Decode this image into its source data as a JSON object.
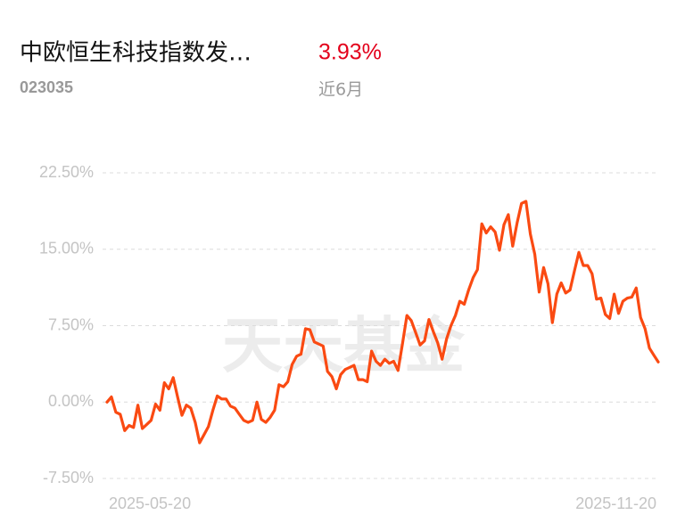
{
  "header": {
    "title": "中欧恒生科技指数发…",
    "change": "3.93%",
    "code": "023035",
    "period": "近6月"
  },
  "watermark": "天天基金",
  "chart_data": {
    "type": "line",
    "color": "#fa4a12",
    "grid": true,
    "categories": [
      "2025-05-20",
      null,
      null,
      null,
      null,
      null,
      null,
      null,
      null,
      null,
      null,
      null,
      null,
      null,
      null,
      null,
      null,
      null,
      null,
      null,
      null,
      null,
      null,
      null,
      null,
      null,
      null,
      null,
      null,
      null,
      null,
      null,
      null,
      null,
      null,
      null,
      null,
      null,
      null,
      null,
      null,
      null,
      null,
      null,
      null,
      null,
      null,
      null,
      null,
      null,
      null,
      null,
      null,
      null,
      null,
      null,
      null,
      null,
      null,
      null,
      null,
      null,
      null,
      null,
      null,
      null,
      null,
      null,
      null,
      null,
      null,
      null,
      null,
      null,
      null,
      null,
      null,
      null,
      null,
      null,
      null,
      null,
      null,
      null,
      null,
      null,
      null,
      null,
      null,
      null,
      null,
      null,
      null,
      null,
      null,
      null,
      null,
      null,
      null,
      null,
      null,
      null,
      null,
      null,
      null,
      null,
      null,
      null,
      null,
      null,
      null,
      null,
      null,
      null,
      null,
      null,
      null,
      null,
      null,
      null,
      null,
      null,
      null,
      null,
      null,
      "2025-11-20"
    ],
    "values": [
      0,
      0.5,
      -1,
      -1.2,
      -2.8,
      -2.3,
      -2.5,
      -0.3,
      -2.6,
      -2.2,
      -1.8,
      -0.2,
      -0.8,
      1.9,
      1.3,
      2.4,
      0.5,
      -1.3,
      -0.3,
      -0.6,
      -2,
      -4,
      -3.2,
      -2.4,
      -0.8,
      0.6,
      0.3,
      0.3,
      -0.4,
      -0.6,
      -1.2,
      -1.8,
      -2,
      -1.8,
      0,
      -1.7,
      -2,
      -1.5,
      -0.8,
      1.7,
      1.5,
      2,
      3.7,
      4.5,
      4.7,
      7.2,
      7.1,
      5.9,
      5.7,
      5.5,
      3,
      2.5,
      1.3,
      2.7,
      3.2,
      3.4,
      3.6,
      2.2,
      2.2,
      2,
      5,
      4,
      3.6,
      4.2,
      3.8,
      4,
      3.1,
      5.7,
      8.5,
      8,
      6.8,
      5.6,
      6,
      8.1,
      6.9,
      5.8,
      4.2,
      6.2,
      7.5,
      8.5,
      9.9,
      9.6,
      11,
      12.2,
      13,
      17.5,
      16.6,
      17.2,
      16.7,
      14.9,
      17.4,
      18.4,
      15.3,
      17.6,
      19.5,
      19.7,
      16.5,
      14.5,
      10.8,
      13.2,
      11.6,
      7.8,
      10.6,
      11.7,
      10.7,
      11,
      12.9,
      14.7,
      13.4,
      13.4,
      12.6,
      10.1,
      10.2,
      8.6,
      8.2,
      10.6,
      8.7,
      9.9,
      10.2,
      10.3,
      11.2,
      8.3,
      7.2,
      5.3,
      4.6,
      3.93
    ],
    "ylim": [
      -7.5,
      22.5
    ],
    "yticks": [
      {
        "value": -7.5,
        "label": "-7.50%"
      },
      {
        "value": 0,
        "label": "0.00%"
      },
      {
        "value": 7.5,
        "label": "7.50%"
      },
      {
        "value": 15,
        "label": "15.00%"
      },
      {
        "value": 22.5,
        "label": "22.50%"
      }
    ]
  }
}
